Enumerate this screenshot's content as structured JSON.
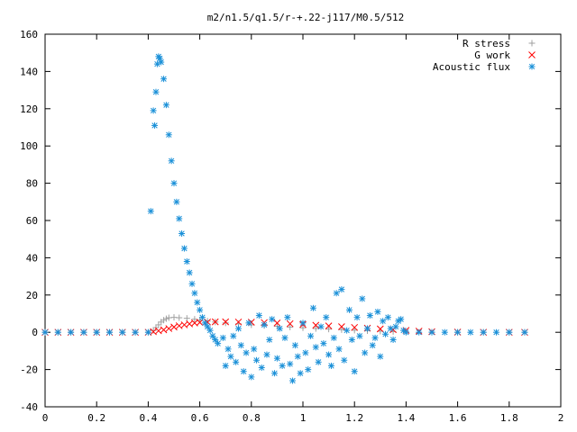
{
  "chart_data": {
    "type": "scatter",
    "title": "m2/n1.5/q1.5/r-+.22-j117/M0.5/512",
    "xlabel": "",
    "ylabel": "",
    "xlim": [
      0,
      2
    ],
    "ylim": [
      -40,
      160
    ],
    "xticks": [
      "0",
      "0.2",
      "0.4",
      "0.6",
      "0.8",
      "1",
      "1.2",
      "1.4",
      "1.6",
      "1.8",
      "2"
    ],
    "yticks": [
      "-40",
      "-20",
      "0",
      "20",
      "40",
      "60",
      "80",
      "100",
      "120",
      "140",
      "160"
    ],
    "grid": false,
    "legend_position": "top-right",
    "series": [
      {
        "name": "R stress",
        "marker": "plus",
        "color": "#a0a0a0",
        "points": [
          [
            0.0,
            0
          ],
          [
            0.05,
            0
          ],
          [
            0.1,
            0
          ],
          [
            0.15,
            0
          ],
          [
            0.2,
            0
          ],
          [
            0.25,
            0
          ],
          [
            0.3,
            0
          ],
          [
            0.35,
            0
          ],
          [
            0.4,
            0
          ],
          [
            0.42,
            1
          ],
          [
            0.43,
            2.5
          ],
          [
            0.44,
            4
          ],
          [
            0.45,
            5.5
          ],
          [
            0.46,
            6.5
          ],
          [
            0.47,
            7.3
          ],
          [
            0.48,
            7.8
          ],
          [
            0.5,
            8
          ],
          [
            0.52,
            7.8
          ],
          [
            0.55,
            7.5
          ],
          [
            0.58,
            7
          ],
          [
            0.6,
            6.5
          ],
          [
            0.63,
            6
          ],
          [
            0.66,
            5.5
          ],
          [
            0.7,
            5
          ],
          [
            0.75,
            4.5
          ],
          [
            0.8,
            4
          ],
          [
            0.85,
            3.6
          ],
          [
            0.9,
            3.2
          ],
          [
            0.95,
            2.8
          ],
          [
            1.0,
            2.4
          ],
          [
            1.05,
            2
          ],
          [
            1.1,
            1.7
          ],
          [
            1.15,
            1.4
          ],
          [
            1.2,
            1.1
          ],
          [
            1.25,
            0.8
          ],
          [
            1.3,
            0.6
          ],
          [
            1.35,
            0.4
          ],
          [
            1.4,
            0.2
          ],
          [
            1.5,
            0.1
          ],
          [
            1.6,
            0
          ],
          [
            1.7,
            0
          ],
          [
            1.8,
            0
          ],
          [
            1.86,
            0
          ]
        ]
      },
      {
        "name": "G work",
        "marker": "cross",
        "color": "#ff0000",
        "points": [
          [
            0.0,
            0
          ],
          [
            0.05,
            0
          ],
          [
            0.1,
            0
          ],
          [
            0.15,
            0
          ],
          [
            0.2,
            0
          ],
          [
            0.25,
            0
          ],
          [
            0.3,
            0
          ],
          [
            0.35,
            0
          ],
          [
            0.4,
            0
          ],
          [
            0.42,
            0.3
          ],
          [
            0.44,
            0.8
          ],
          [
            0.46,
            1.3
          ],
          [
            0.48,
            2
          ],
          [
            0.5,
            2.8
          ],
          [
            0.52,
            3.5
          ],
          [
            0.54,
            4
          ],
          [
            0.56,
            4.5
          ],
          [
            0.58,
            5
          ],
          [
            0.6,
            5.3
          ],
          [
            0.63,
            5.5
          ],
          [
            0.66,
            5.6
          ],
          [
            0.7,
            5.6
          ],
          [
            0.75,
            5.5
          ],
          [
            0.8,
            5.4
          ],
          [
            0.85,
            5.2
          ],
          [
            0.9,
            5
          ],
          [
            0.95,
            4.6
          ],
          [
            1.0,
            4.2
          ],
          [
            1.05,
            3.8
          ],
          [
            1.1,
            3.4
          ],
          [
            1.15,
            3
          ],
          [
            1.2,
            2.6
          ],
          [
            1.25,
            2.2
          ],
          [
            1.3,
            1.8
          ],
          [
            1.35,
            1.4
          ],
          [
            1.4,
            1
          ],
          [
            1.45,
            0.6
          ],
          [
            1.5,
            0.3
          ],
          [
            1.6,
            0.1
          ],
          [
            1.7,
            0
          ],
          [
            1.8,
            0
          ],
          [
            1.86,
            0
          ]
        ]
      },
      {
        "name": "Acoustic flux",
        "marker": "star",
        "color": "#1a90d8",
        "points": [
          [
            0.0,
            0
          ],
          [
            0.05,
            0
          ],
          [
            0.1,
            0
          ],
          [
            0.15,
            0
          ],
          [
            0.2,
            0
          ],
          [
            0.25,
            0
          ],
          [
            0.3,
            0
          ],
          [
            0.35,
            0
          ],
          [
            0.4,
            0
          ],
          [
            0.41,
            65
          ],
          [
            0.42,
            119
          ],
          [
            0.425,
            111
          ],
          [
            0.43,
            129
          ],
          [
            0.435,
            144
          ],
          [
            0.44,
            148
          ],
          [
            0.445,
            147
          ],
          [
            0.45,
            145
          ],
          [
            0.46,
            136
          ],
          [
            0.47,
            122
          ],
          [
            0.48,
            106
          ],
          [
            0.49,
            92
          ],
          [
            0.5,
            80
          ],
          [
            0.51,
            70
          ],
          [
            0.52,
            61
          ],
          [
            0.53,
            53
          ],
          [
            0.54,
            45
          ],
          [
            0.55,
            38
          ],
          [
            0.56,
            32
          ],
          [
            0.57,
            26
          ],
          [
            0.58,
            21
          ],
          [
            0.59,
            16
          ],
          [
            0.6,
            12
          ],
          [
            0.61,
            8
          ],
          [
            0.62,
            5
          ],
          [
            0.63,
            3
          ],
          [
            0.64,
            1
          ],
          [
            0.65,
            -2
          ],
          [
            0.66,
            -4
          ],
          [
            0.67,
            -6
          ],
          [
            0.69,
            -3
          ],
          [
            0.7,
            -18
          ],
          [
            0.71,
            -9
          ],
          [
            0.72,
            -13
          ],
          [
            0.73,
            -2
          ],
          [
            0.74,
            -16
          ],
          [
            0.75,
            2
          ],
          [
            0.76,
            -7
          ],
          [
            0.77,
            -21
          ],
          [
            0.78,
            -11
          ],
          [
            0.79,
            5
          ],
          [
            0.8,
            -24
          ],
          [
            0.81,
            -9
          ],
          [
            0.82,
            -15
          ],
          [
            0.83,
            9
          ],
          [
            0.84,
            -19
          ],
          [
            0.85,
            4
          ],
          [
            0.86,
            -12
          ],
          [
            0.87,
            -4
          ],
          [
            0.88,
            7
          ],
          [
            0.89,
            -22
          ],
          [
            0.9,
            -14
          ],
          [
            0.91,
            2
          ],
          [
            0.92,
            -18
          ],
          [
            0.93,
            -3
          ],
          [
            0.94,
            8
          ],
          [
            0.95,
            -17
          ],
          [
            0.96,
            -26
          ],
          [
            0.97,
            -7
          ],
          [
            0.98,
            -13
          ],
          [
            0.99,
            -22
          ],
          [
            1.0,
            5
          ],
          [
            1.01,
            -11
          ],
          [
            1.02,
            -20
          ],
          [
            1.03,
            -2
          ],
          [
            1.04,
            13
          ],
          [
            1.05,
            -8
          ],
          [
            1.06,
            -16
          ],
          [
            1.07,
            3
          ],
          [
            1.08,
            -6
          ],
          [
            1.09,
            8
          ],
          [
            1.1,
            -12
          ],
          [
            1.11,
            -18
          ],
          [
            1.12,
            -3
          ],
          [
            1.13,
            21
          ],
          [
            1.14,
            -9
          ],
          [
            1.15,
            23
          ],
          [
            1.16,
            -15
          ],
          [
            1.17,
            1
          ],
          [
            1.18,
            12
          ],
          [
            1.19,
            -4
          ],
          [
            1.2,
            -21
          ],
          [
            1.21,
            8
          ],
          [
            1.22,
            -2
          ],
          [
            1.23,
            18
          ],
          [
            1.24,
            -11
          ],
          [
            1.25,
            2
          ],
          [
            1.26,
            9
          ],
          [
            1.27,
            -7
          ],
          [
            1.28,
            -3
          ],
          [
            1.29,
            11
          ],
          [
            1.3,
            -13
          ],
          [
            1.31,
            6
          ],
          [
            1.32,
            -1
          ],
          [
            1.33,
            8
          ],
          [
            1.34,
            2
          ],
          [
            1.35,
            -4
          ],
          [
            1.36,
            3
          ],
          [
            1.37,
            6
          ],
          [
            1.38,
            7
          ],
          [
            1.39,
            1
          ],
          [
            1.4,
            0
          ],
          [
            1.45,
            0
          ],
          [
            1.5,
            0
          ],
          [
            1.55,
            0
          ],
          [
            1.6,
            0
          ],
          [
            1.65,
            0
          ],
          [
            1.7,
            0
          ],
          [
            1.75,
            0
          ],
          [
            1.8,
            0
          ],
          [
            1.86,
            0
          ]
        ]
      }
    ]
  }
}
